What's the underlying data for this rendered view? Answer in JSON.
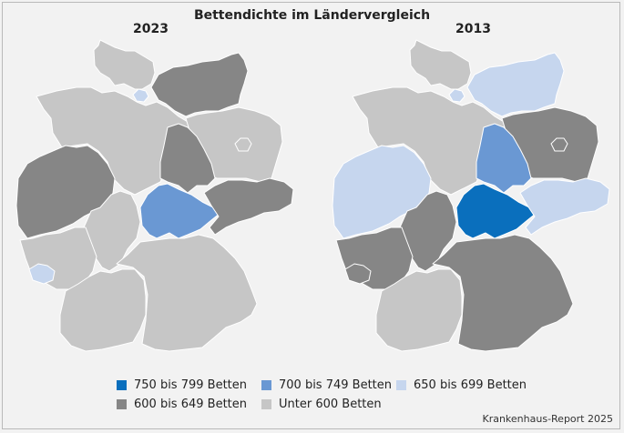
{
  "title": "Bettendichte im Ländervergleich",
  "maps": [
    {
      "year": "2023"
    },
    {
      "year": "2013"
    }
  ],
  "legend": [
    {
      "label": "750 bis 799 Betten",
      "color": "#0a6fbd"
    },
    {
      "label": "700 bis 749 Betten",
      "color": "#6a98d3"
    },
    {
      "label": "650 bis 699 Betten",
      "color": "#c6d6ee"
    },
    {
      "label": "600 bis 649 Betten",
      "color": "#868686"
    },
    {
      "label": "Unter 600 Betten",
      "color": "#c6c6c6"
    }
  ],
  "source": "Krankenhaus-Report 2025",
  "states": {
    "Schleswig-Holstein": {
      "2023": "Unter 600 Betten",
      "2013": "Unter 600 Betten"
    },
    "Hamburg": {
      "2023": "650 bis 699 Betten",
      "2013": "650 bis 699 Betten"
    },
    "Mecklenburg-Vorpommern": {
      "2023": "600 bis 649 Betten",
      "2013": "650 bis 699 Betten"
    },
    "Bremen": {
      "2023": "600 bis 649 Betten",
      "2013": "750 bis 799 Betten"
    },
    "Niedersachsen": {
      "2023": "Unter 600 Betten",
      "2013": "Unter 600 Betten"
    },
    "Brandenburg": {
      "2023": "Unter 600 Betten",
      "2013": "600 bis 649 Betten"
    },
    "Berlin": {
      "2023": "Unter 600 Betten",
      "2013": "600 bis 649 Betten"
    },
    "Sachsen-Anhalt": {
      "2023": "600 bis 649 Betten",
      "2013": "700 bis 749 Betten"
    },
    "Nordrhein-Westfalen": {
      "2023": "600 bis 649 Betten",
      "2013": "650 bis 699 Betten"
    },
    "Hessen": {
      "2023": "Unter 600 Betten",
      "2013": "600 bis 649 Betten"
    },
    "Thüringen": {
      "2023": "700 bis 749 Betten",
      "2013": "750 bis 799 Betten"
    },
    "Sachsen": {
      "2023": "600 bis 649 Betten",
      "2013": "650 bis 699 Betten"
    },
    "Rheinland-Pfalz": {
      "2023": "Unter 600 Betten",
      "2013": "600 bis 649 Betten"
    },
    "Saarland": {
      "2023": "650 bis 699 Betten",
      "2013": "600 bis 649 Betten"
    },
    "Baden-Württemberg": {
      "2023": "Unter 600 Betten",
      "2013": "Unter 600 Betten"
    },
    "Bayern": {
      "2023": "Unter 600 Betten",
      "2013": "600 bis 649 Betten"
    }
  }
}
